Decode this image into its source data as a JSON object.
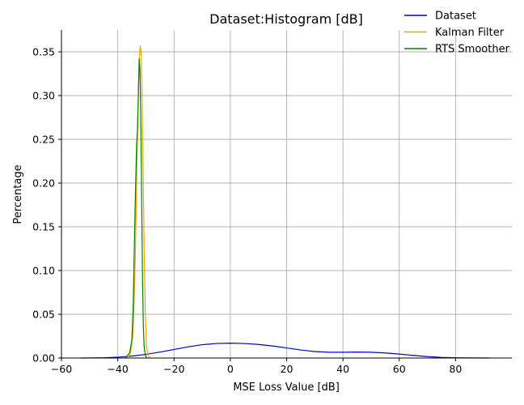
{
  "chart_data": {
    "type": "line",
    "title": "Dataset:Histogram [dB]",
    "xlabel": "MSE Loss Value [dB]",
    "ylabel": "Percentage",
    "xlim": [
      -60,
      100
    ],
    "ylim": [
      0,
      0.375
    ],
    "xticks": [
      -60,
      -40,
      -20,
      0,
      20,
      40,
      60,
      80
    ],
    "yticks": [
      0.0,
      0.05,
      0.1,
      0.15,
      0.2,
      0.25,
      0.3,
      0.35
    ],
    "ytick_labels": [
      "0.00",
      "0.05",
      "0.10",
      "0.15",
      "0.20",
      "0.25",
      "0.30",
      "0.35"
    ],
    "grid": true,
    "legend_position": "top-right",
    "series": [
      {
        "name": "Dataset",
        "color": "#0000cc",
        "x": [
          -53,
          -45,
          -40,
          -35,
          -30,
          -25,
          -20,
          -15,
          -10,
          -5,
          0,
          5,
          10,
          15,
          20,
          25,
          30,
          35,
          40,
          45,
          50,
          55,
          60,
          65,
          70,
          75,
          80,
          85,
          92
        ],
        "y": [
          0.0,
          0.0003,
          0.001,
          0.0022,
          0.0042,
          0.0068,
          0.0098,
          0.0128,
          0.0152,
          0.0166,
          0.017,
          0.0166,
          0.0155,
          0.0138,
          0.0115,
          0.0092,
          0.0074,
          0.0066,
          0.0066,
          0.0068,
          0.0066,
          0.0058,
          0.0045,
          0.003,
          0.0016,
          0.0007,
          0.0003,
          0.0001,
          0.0
        ]
      },
      {
        "name": "Kalman Filter",
        "color": "#f0a800",
        "x": [
          -37,
          -35.5,
          -34.5,
          -33.8,
          -33.2,
          -32.7,
          -32.3,
          -32.0,
          -31.7,
          -31.4,
          -31.0,
          -30.6,
          -30.2,
          -29.8,
          -29.2,
          -28.3
        ],
        "y": [
          0.0,
          0.004,
          0.03,
          0.11,
          0.22,
          0.3,
          0.345,
          0.357,
          0.35,
          0.31,
          0.22,
          0.12,
          0.05,
          0.015,
          0.003,
          0.0
        ]
      },
      {
        "name": "RTS Smoother",
        "color": "#008000",
        "x": [
          -37.2,
          -35.8,
          -35.0,
          -34.5,
          -34.1,
          -33.7,
          -33.3,
          -33.0,
          -32.7,
          -32.4,
          -32.1,
          -31.8,
          -31.5,
          -31.2,
          -30.9,
          -30.6,
          -30.2,
          -29.6
        ],
        "y": [
          0.0,
          0.006,
          0.02,
          0.06,
          0.13,
          0.19,
          0.245,
          0.26,
          0.3,
          0.342,
          0.33,
          0.27,
          0.18,
          0.09,
          0.035,
          0.012,
          0.003,
          0.0
        ]
      }
    ]
  }
}
